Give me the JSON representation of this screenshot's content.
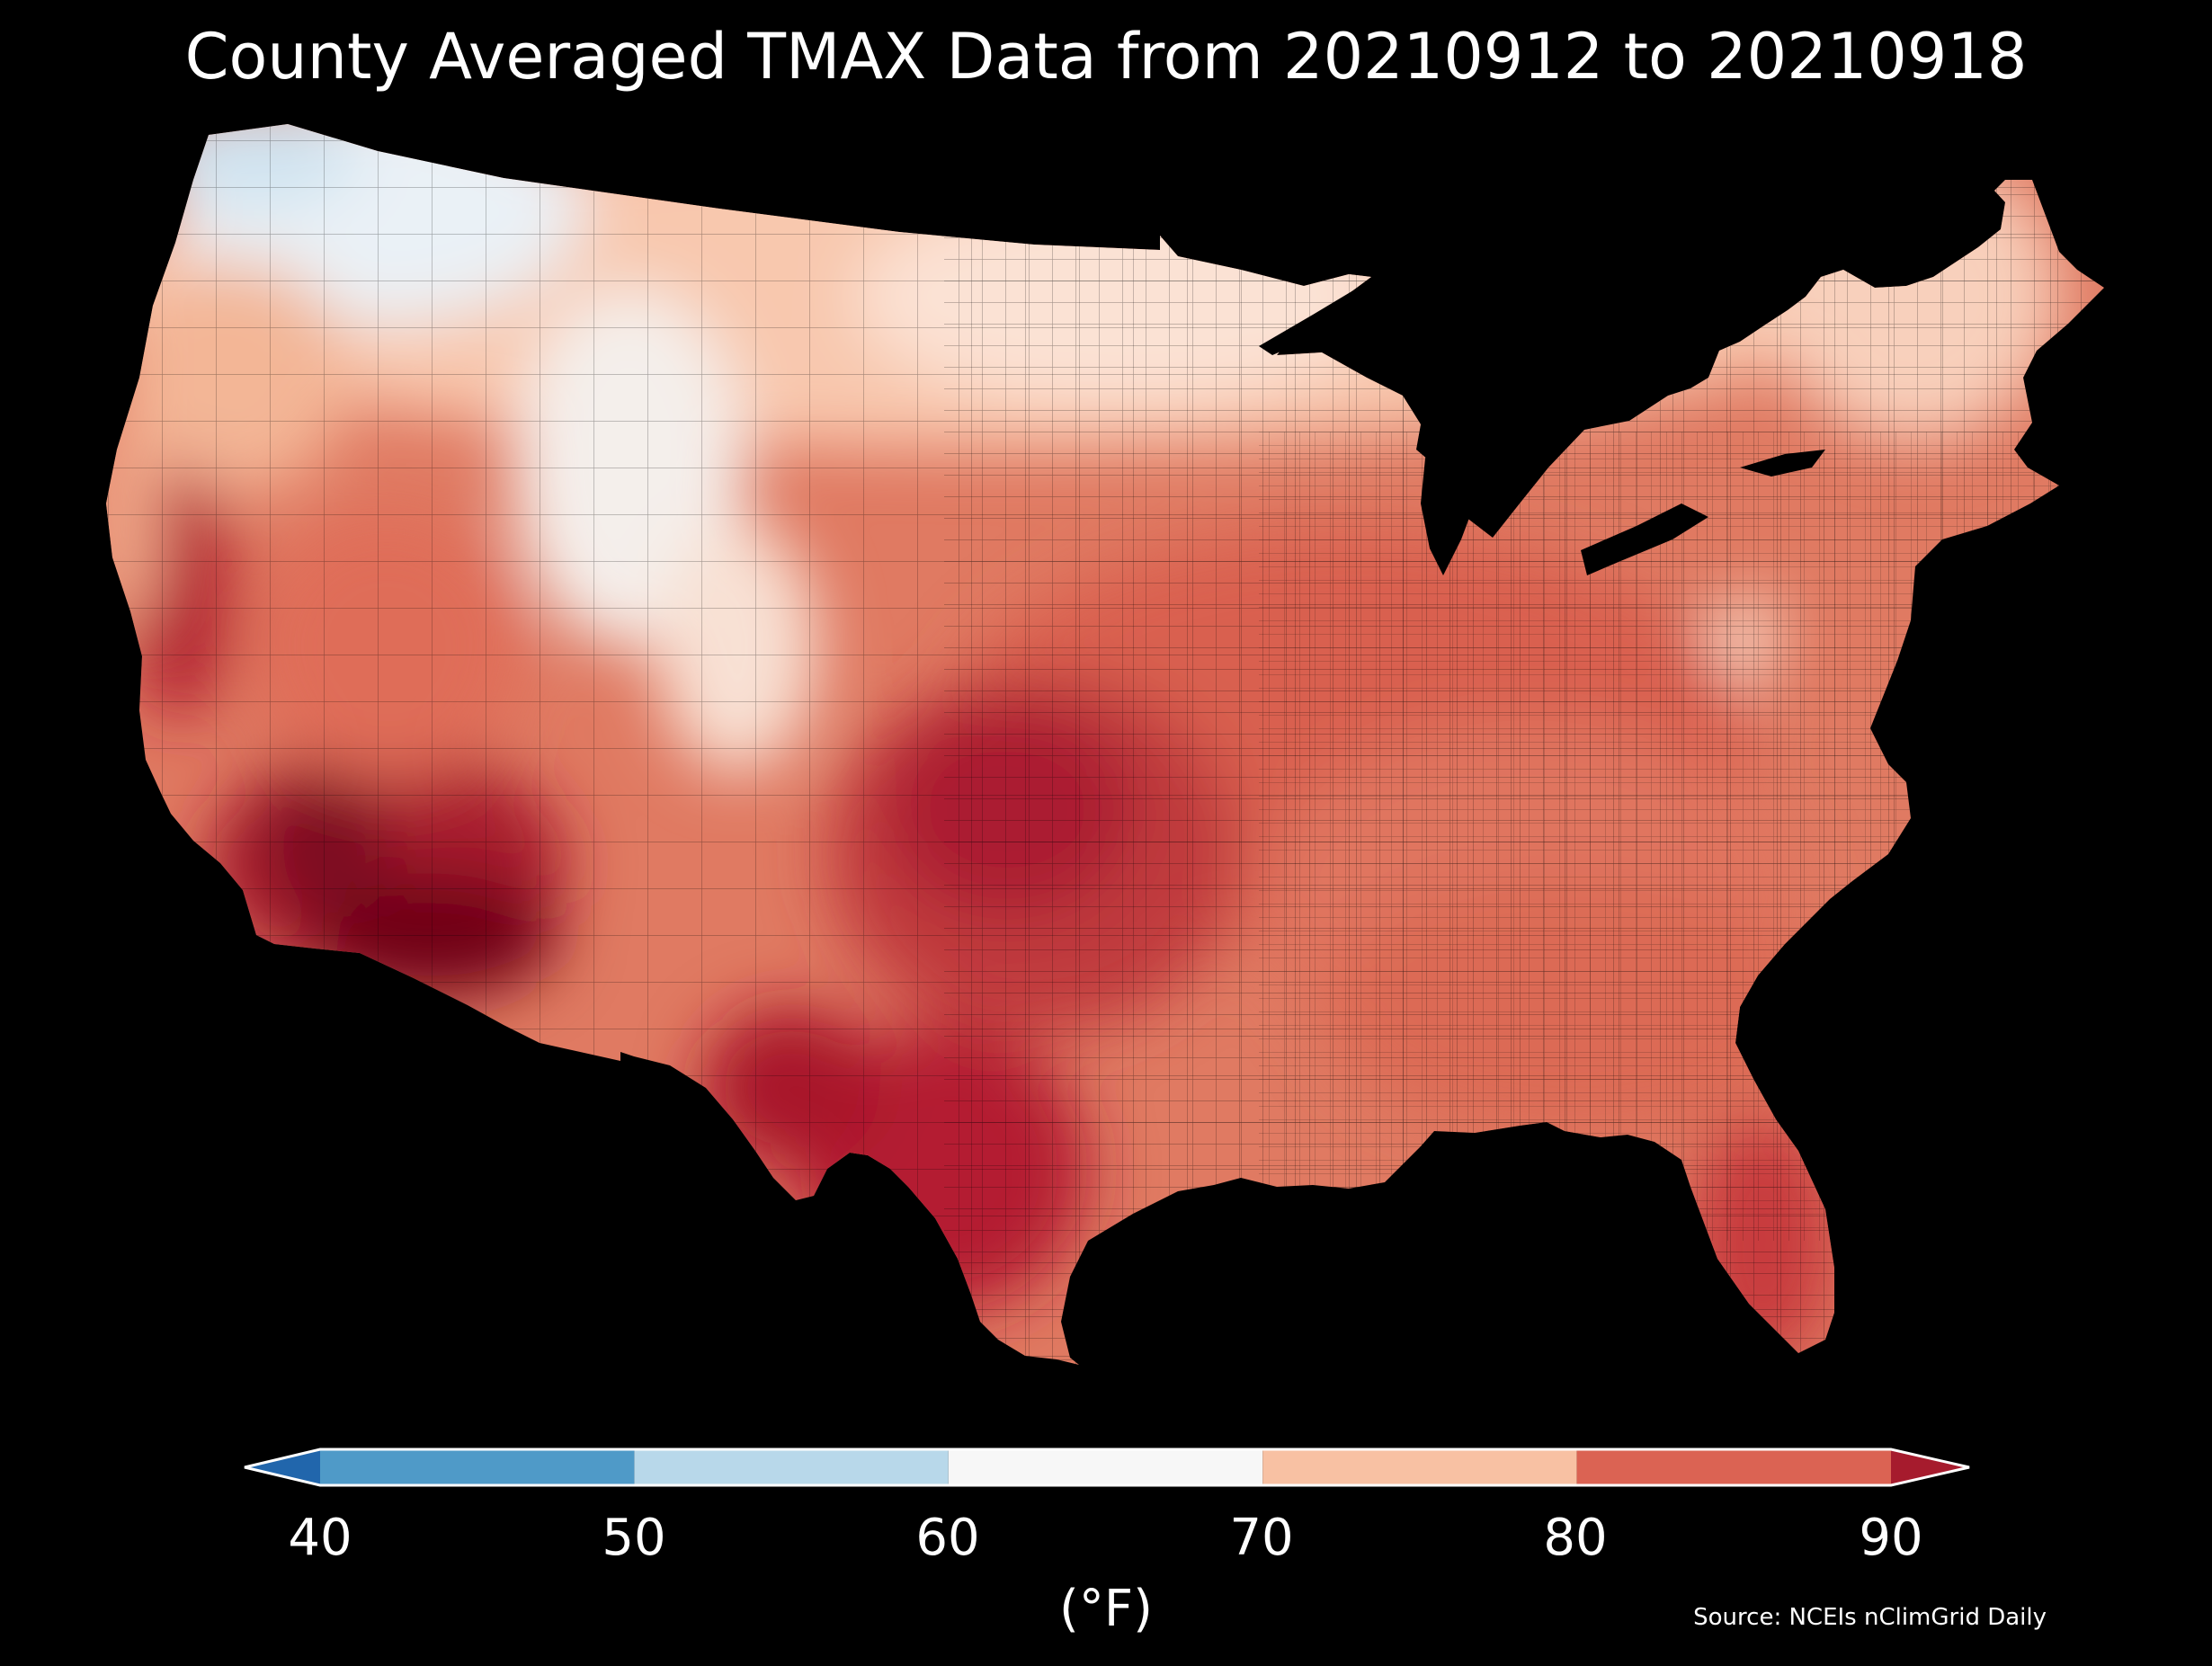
{
  "title": "County Averaged TMAX Data from 20210912 to 20210918",
  "colorbar": {
    "ticks": [
      "40",
      "50",
      "60",
      "70",
      "80",
      "90"
    ],
    "unit": "(°F)",
    "bins": [
      {
        "from": null,
        "to": 40,
        "color": "#2166ac",
        "label": "below 40 (extend)"
      },
      {
        "from": 40,
        "to": 50,
        "color": "#4f9ac8"
      },
      {
        "from": 50,
        "to": 60,
        "color": "#b8d8ea"
      },
      {
        "from": 60,
        "to": 70,
        "color": "#f7f7f7"
      },
      {
        "from": 70,
        "to": 80,
        "color": "#f8c1a3"
      },
      {
        "from": 80,
        "to": 90,
        "color": "#db6353"
      },
      {
        "from": 90,
        "to": null,
        "color": "#a61b2d"
      }
    ]
  },
  "source": "Source: NCEIs nClimGrid Daily",
  "map": {
    "region": "contiguous United States",
    "colors": {
      "cool": "#d6e8f4",
      "neutral": "#f7f7f7",
      "mild": "#f8c1a3",
      "warm": "#e8846a",
      "hot": "#cc4a45",
      "hotter": "#b8202e",
      "hottest": "#6b0018"
    }
  }
}
